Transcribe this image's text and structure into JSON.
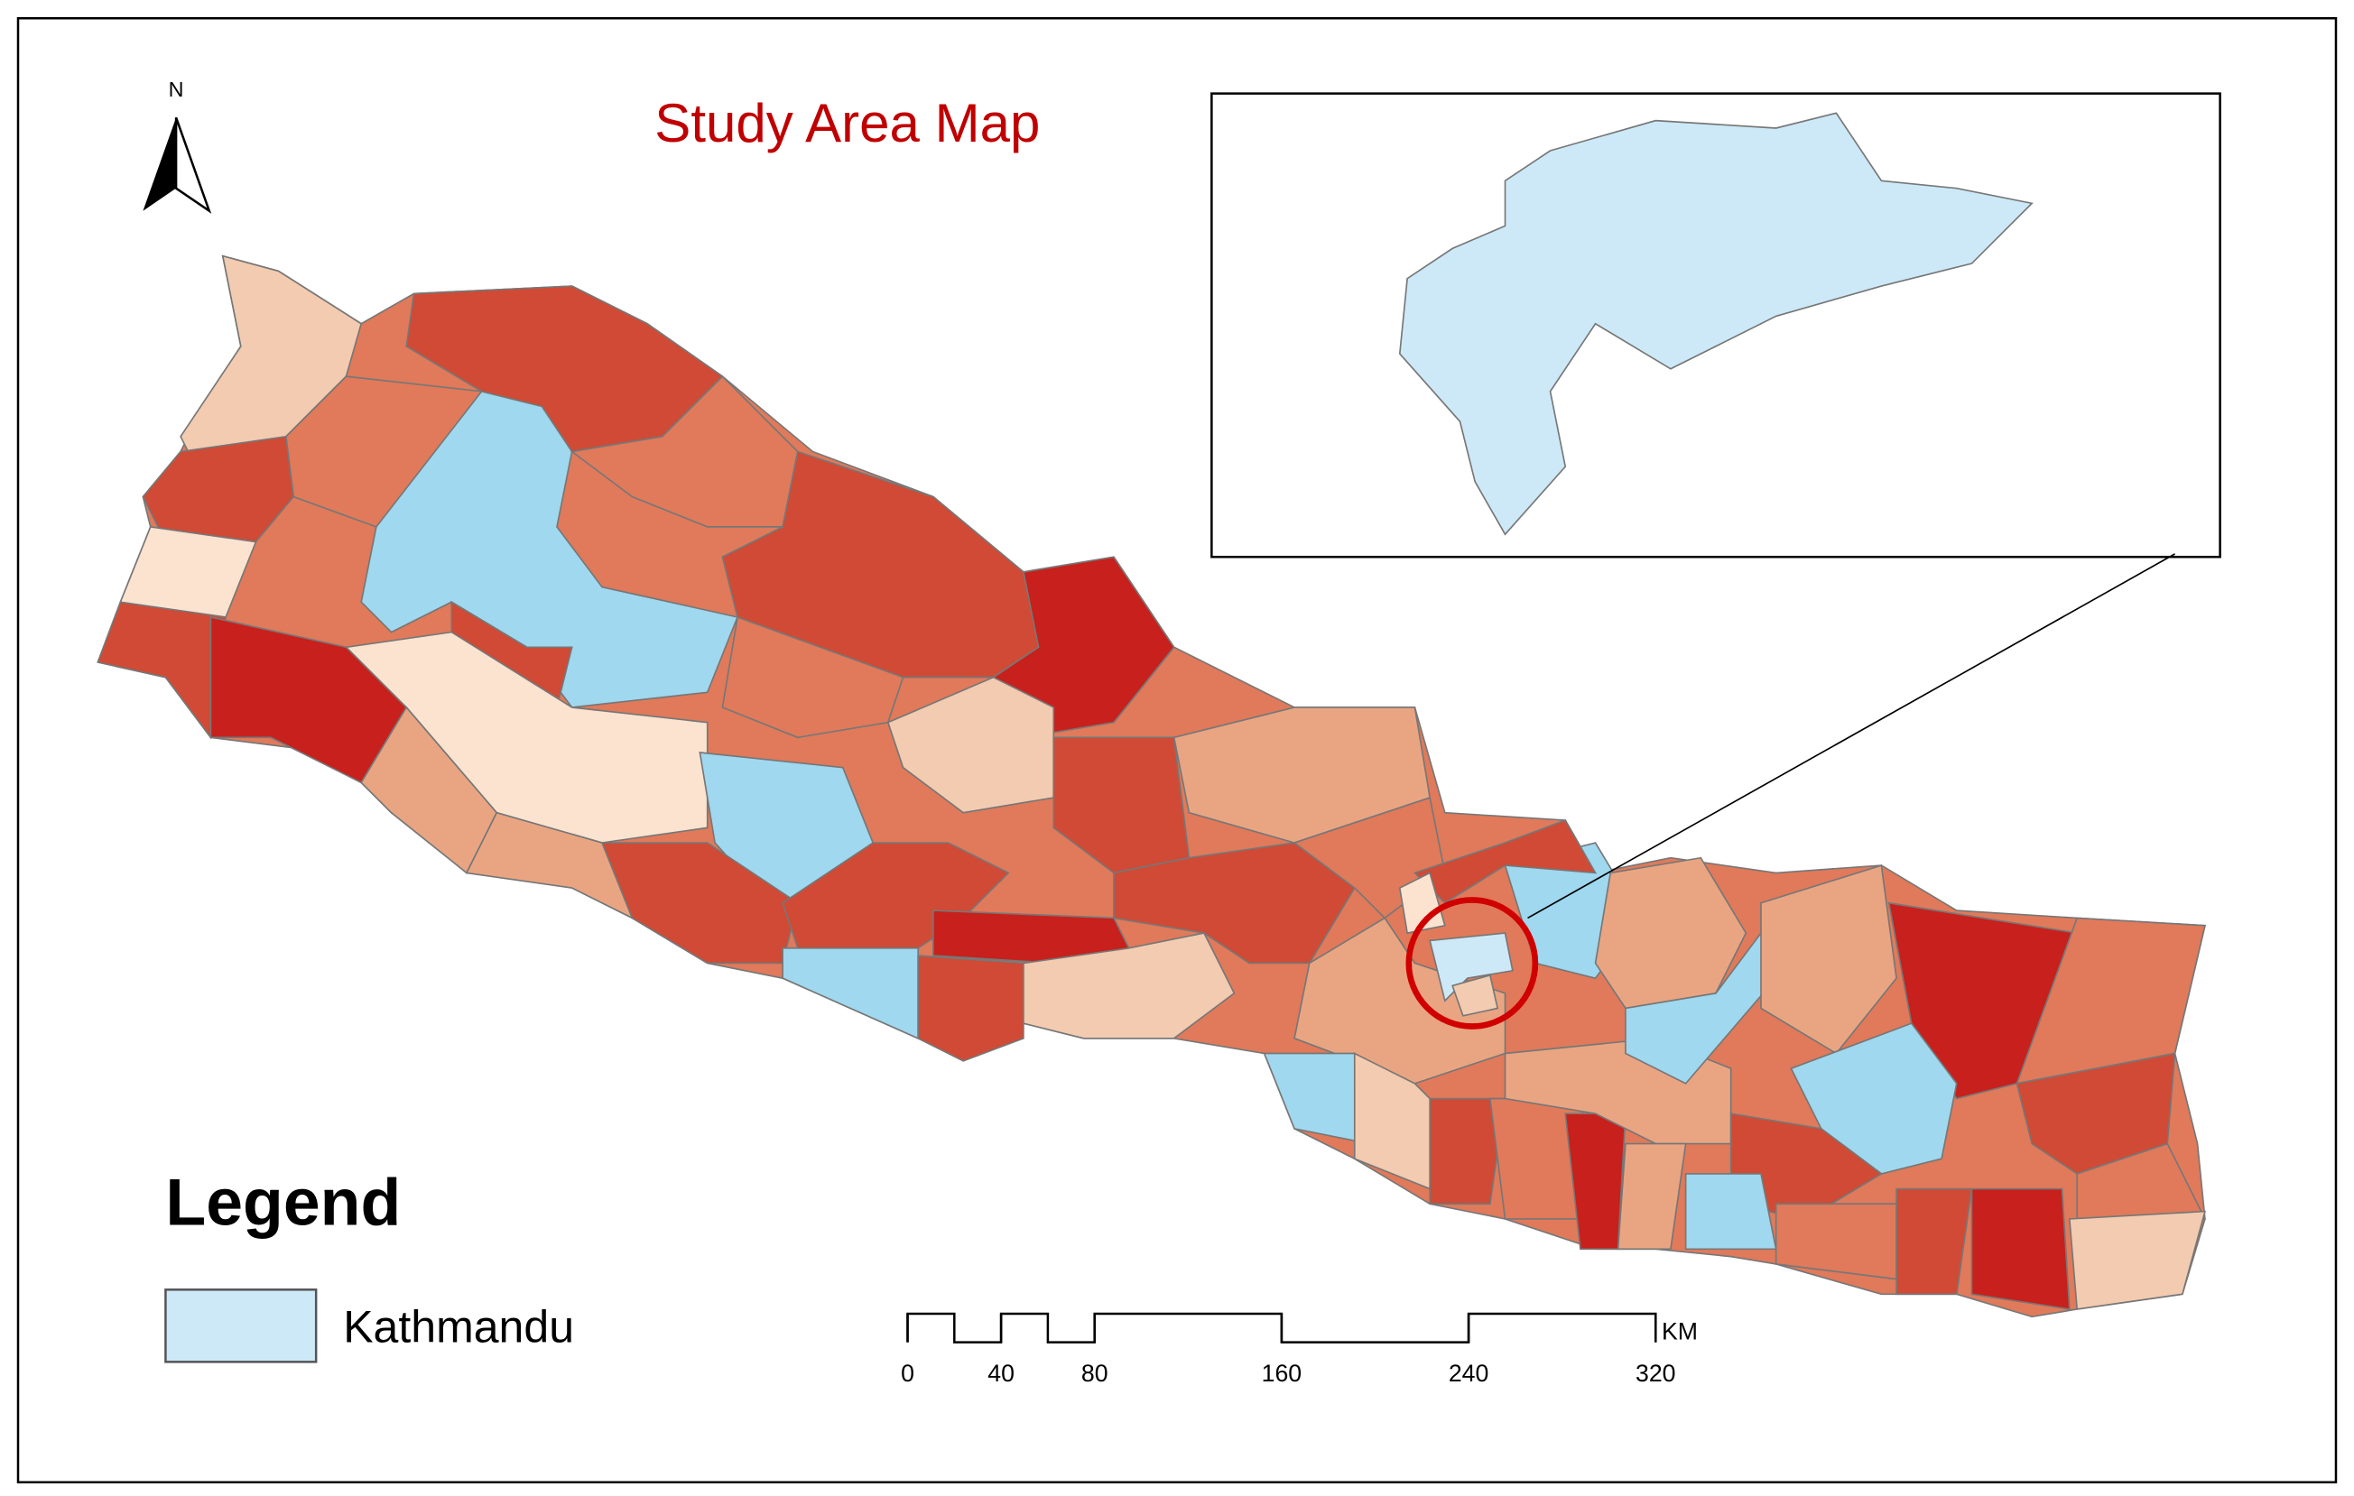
{
  "title": "Study Area Map",
  "north_arrow": {
    "label": "N"
  },
  "legend": {
    "title": "Legend",
    "items": [
      {
        "label": "Kathmandu",
        "color": "#cde9f8"
      }
    ]
  },
  "scale_bar": {
    "unit": "KM",
    "ticks": [
      0,
      40,
      80,
      160,
      240,
      320
    ]
  }
}
